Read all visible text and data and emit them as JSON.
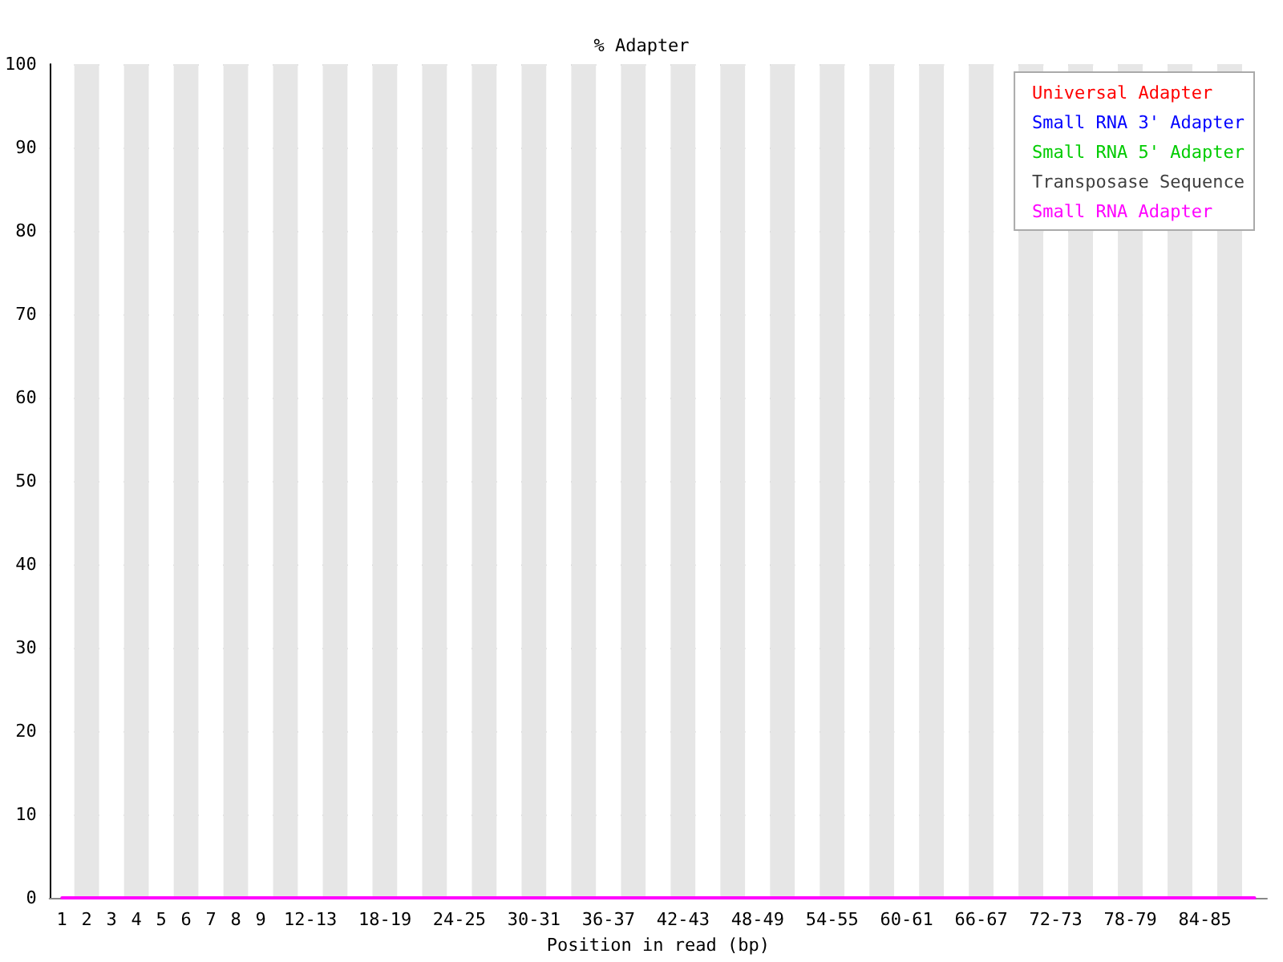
{
  "chart_data": {
    "type": "line",
    "title": "% Adapter",
    "xlabel": "Position in read (bp)",
    "categories": [
      "1",
      "2",
      "3",
      "4",
      "5",
      "6",
      "7",
      "8",
      "9",
      null,
      "12-13",
      null,
      null,
      "18-19",
      null,
      null,
      "24-25",
      null,
      null,
      "30-31",
      null,
      null,
      "36-37",
      null,
      null,
      "42-43",
      null,
      null,
      "48-49",
      null,
      null,
      "54-55",
      null,
      null,
      "60-61",
      null,
      null,
      "66-67",
      null,
      null,
      "72-73",
      null,
      null,
      "78-79",
      null,
      null,
      "84-85",
      null,
      null
    ],
    "series": [
      {
        "name": "Universal Adapter",
        "color": "#ff0000",
        "values": [
          null,
          null,
          null,
          null,
          null,
          null,
          null,
          null,
          null,
          null,
          null,
          null,
          null,
          null,
          null,
          null,
          null,
          null,
          null,
          null,
          null,
          null,
          null,
          null,
          null,
          null,
          null,
          null,
          null,
          null,
          null,
          null,
          null,
          null,
          null,
          null,
          null,
          null,
          null,
          null,
          null,
          null,
          null,
          null,
          null,
          null,
          null,
          null,
          null
        ]
      },
      {
        "name": "Small RNA 3' Adapter",
        "color": "#0000ff",
        "values": [
          null,
          null,
          null,
          null,
          null,
          null,
          null,
          null,
          null,
          null,
          null,
          null,
          null,
          null,
          null,
          null,
          null,
          null,
          null,
          null,
          null,
          null,
          null,
          null,
          null,
          null,
          null,
          null,
          null,
          null,
          null,
          null,
          null,
          null,
          null,
          null,
          null,
          null,
          null,
          null,
          null,
          null,
          null,
          null,
          null,
          null,
          null,
          null,
          null
        ]
      },
      {
        "name": "Small RNA 5' Adapter",
        "color": "#00cc00",
        "values": [
          null,
          null,
          null,
          null,
          null,
          null,
          null,
          null,
          null,
          null,
          null,
          null,
          null,
          null,
          null,
          null,
          null,
          null,
          null,
          null,
          null,
          null,
          null,
          null,
          null,
          null,
          null,
          null,
          null,
          null,
          null,
          null,
          null,
          null,
          null,
          null,
          null,
          null,
          null,
          null,
          null,
          null,
          null,
          null,
          null,
          null,
          null,
          null,
          null
        ]
      },
      {
        "name": "Transposase Sequence",
        "color": "#404040",
        "values": [
          null,
          null,
          null,
          null,
          null,
          null,
          null,
          null,
          null,
          null,
          null,
          null,
          null,
          null,
          null,
          null,
          null,
          null,
          null,
          null,
          null,
          null,
          null,
          null,
          null,
          null,
          null,
          null,
          null,
          null,
          null,
          null,
          null,
          null,
          null,
          null,
          null,
          null,
          null,
          null,
          null,
          null,
          null,
          null,
          null,
          null,
          null,
          null,
          null
        ]
      },
      {
        "name": "Small RNA Adapter",
        "color": "#ff00ff",
        "values": [
          0,
          0,
          0,
          0,
          0,
          0,
          0,
          0,
          0,
          0,
          0,
          0,
          0,
          0,
          0,
          0,
          0,
          0,
          0,
          0,
          0,
          0,
          0,
          0,
          0,
          0,
          0,
          0,
          0,
          0,
          0,
          0,
          0,
          0,
          0,
          0,
          0,
          0,
          0,
          0,
          0,
          0,
          0,
          0,
          0,
          0,
          0,
          0,
          0
        ]
      }
    ],
    "ylim": [
      0,
      100
    ],
    "yticks": [
      0,
      10,
      20,
      30,
      40,
      50,
      60,
      70,
      80,
      90,
      100
    ],
    "grid": "y",
    "legend": "top right",
    "marker": "none",
    "line_style": "solid"
  }
}
